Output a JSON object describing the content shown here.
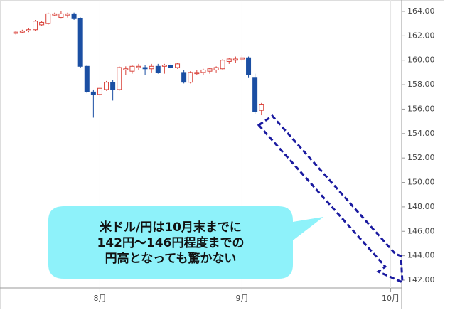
{
  "chart_data": {
    "type": "candlestick",
    "x": [
      0,
      1,
      2,
      3,
      4,
      5,
      6,
      7,
      8,
      9,
      10,
      11,
      12,
      13,
      14,
      15,
      16,
      17,
      18,
      19,
      20,
      21,
      22,
      23,
      24,
      25,
      26,
      27,
      28,
      29,
      30,
      31,
      32,
      33,
      34,
      35,
      36,
      37,
      38
    ],
    "open": [
      162.2,
      162.3,
      162.4,
      162.5,
      162.9,
      163.0,
      163.7,
      163.5,
      163.7,
      163.8,
      163.4,
      159.5,
      157.4,
      157.2,
      157.6,
      158.2,
      157.6,
      159.2,
      159.1,
      159.4,
      159.4,
      159.3,
      159.5,
      159.5,
      159.6,
      159.4,
      159.0,
      158.2,
      158.9,
      159.0,
      159.1,
      159.2,
      159.3,
      159.9,
      160.0,
      160.1,
      160.2,
      158.6,
      155.9
    ],
    "high": [
      162.4,
      162.5,
      162.6,
      163.3,
      163.2,
      163.9,
      163.9,
      164.0,
      163.9,
      163.9,
      163.5,
      159.6,
      157.6,
      157.8,
      158.3,
      158.4,
      159.5,
      159.5,
      159.6,
      159.7,
      159.6,
      159.7,
      159.7,
      159.7,
      159.8,
      159.8,
      159.2,
      159.1,
      159.2,
      159.3,
      159.4,
      159.5,
      160.1,
      160.2,
      160.3,
      160.4,
      160.3,
      158.9,
      156.5
    ],
    "low": [
      162.1,
      162.2,
      162.3,
      162.4,
      162.8,
      162.9,
      163.6,
      163.4,
      163.5,
      163.3,
      159.4,
      157.3,
      155.3,
      157.0,
      157.5,
      156.7,
      157.5,
      158.8,
      158.9,
      159.2,
      158.8,
      159.0,
      158.9,
      158.9,
      159.3,
      159.3,
      158.1,
      158.1,
      158.8,
      158.8,
      158.9,
      159.0,
      159.2,
      159.7,
      159.8,
      159.9,
      158.6,
      155.6,
      155.5
    ],
    "close": [
      162.3,
      162.4,
      162.5,
      163.2,
      163.1,
      163.8,
      163.8,
      163.8,
      163.8,
      163.4,
      159.5,
      157.4,
      157.2,
      157.7,
      158.2,
      157.6,
      159.4,
      159.3,
      159.5,
      159.5,
      159.3,
      159.5,
      159.0,
      159.6,
      159.4,
      159.7,
      158.2,
      159.0,
      159.0,
      159.2,
      159.3,
      159.4,
      160.0,
      160.1,
      160.1,
      160.2,
      158.8,
      155.8,
      156.4
    ],
    "up_color": "#d9423a",
    "down_color": "#1b4fa3",
    "xlim": [
      -0.8,
      59.7
    ],
    "xticks": [
      {
        "value": 13,
        "label": "8月"
      },
      {
        "value": 35,
        "label": "9月"
      },
      {
        "value": 58,
        "label": "10月"
      }
    ],
    "ylim": [
      141.36,
      164.93
    ],
    "yticks": [
      {
        "value": 142,
        "label": "142.00"
      },
      {
        "value": 144,
        "label": "144.00"
      },
      {
        "value": 146,
        "label": "146.00"
      },
      {
        "value": 148,
        "label": "148.00"
      },
      {
        "value": 150,
        "label": "150.00"
      },
      {
        "value": 152,
        "label": "152.00"
      },
      {
        "value": 154,
        "label": "154.00"
      },
      {
        "value": 156,
        "label": "156.00"
      },
      {
        "value": 158,
        "label": "158.00"
      },
      {
        "value": 160,
        "label": "160.00"
      },
      {
        "value": 162,
        "label": "162.00"
      },
      {
        "value": 164,
        "label": "164.00"
      }
    ],
    "annotation": [
      "米ドル/円は10月末までに",
      "142円～146円程度までの",
      "円高となっても驚かない"
    ]
  }
}
